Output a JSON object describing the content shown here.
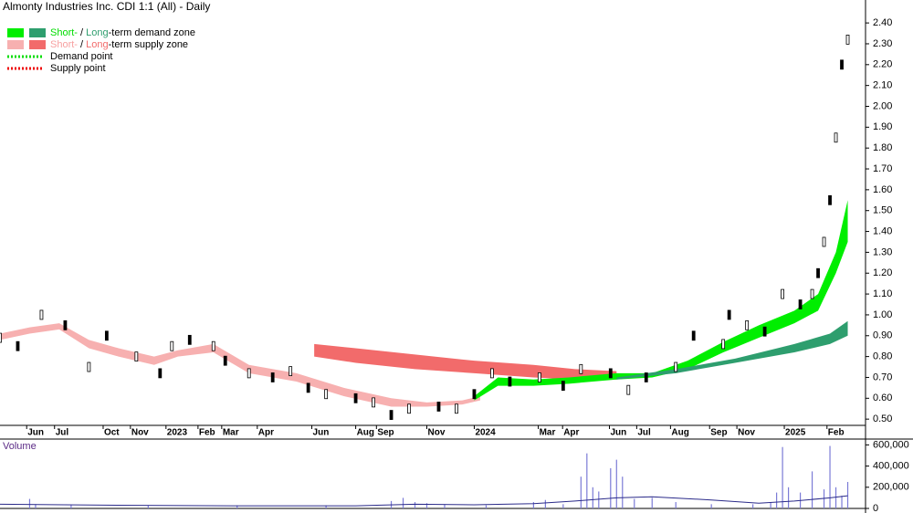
{
  "chart_data": [
    {
      "type": "price-zones",
      "title": "Almonty Industries Inc. CDI 1:1 (All) - Daily",
      "legend": [
        {
          "swatches": [
            "#00ee00",
            "#2e9e6e"
          ],
          "parts": [
            {
              "text": "Short-",
              "color": "#00dd00"
            },
            {
              "text": " / "
            },
            {
              "text": "Long",
              "color": "#2e9e6e"
            },
            {
              "text": "-term demand zone"
            }
          ]
        },
        {
          "swatches": [
            "#f7b0b0",
            "#f26b6b"
          ],
          "parts": [
            {
              "text": "Short-",
              "color": "#f7a0a0"
            },
            {
              "text": " / "
            },
            {
              "text": "Long",
              "color": "#f26b6b"
            },
            {
              "text": "-term supply zone"
            }
          ]
        },
        {
          "swatches": [
            "#00dd00"
          ],
          "dotted": true,
          "parts": [
            {
              "text": "Demand point"
            }
          ]
        },
        {
          "swatches": [
            "#ee0000"
          ],
          "dotted": true,
          "parts": [
            {
              "text": "Supply point"
            }
          ]
        }
      ],
      "xlim": [
        0,
        146
      ],
      "ylim": [
        0.47,
        2.51
      ],
      "yticks": [
        {
          "value": 0.5,
          "label": "0.50"
        },
        {
          "value": 0.6,
          "label": "0.60"
        },
        {
          "value": 0.7,
          "label": "0.70"
        },
        {
          "value": 0.8,
          "label": "0.80"
        },
        {
          "value": 0.9,
          "label": "0.90"
        },
        {
          "value": 1.0,
          "label": "1.00"
        },
        {
          "value": 1.1,
          "label": "1.10"
        },
        {
          "value": 1.2,
          "label": "1.20"
        },
        {
          "value": 1.3,
          "label": "1.30"
        },
        {
          "value": 1.4,
          "label": "1.40"
        },
        {
          "value": 1.5,
          "label": "1.50"
        },
        {
          "value": 1.6,
          "label": "1.60"
        },
        {
          "value": 1.7,
          "label": "1.70"
        },
        {
          "value": 1.8,
          "label": "1.80"
        },
        {
          "value": 1.9,
          "label": "1.90"
        },
        {
          "value": 2.0,
          "label": "2.00"
        },
        {
          "value": 2.1,
          "label": "2.10"
        },
        {
          "value": 2.2,
          "label": "2.20"
        },
        {
          "value": 2.3,
          "label": "2.30"
        },
        {
          "value": 2.4,
          "label": "2.40"
        }
      ],
      "xticks": [
        {
          "value": 4.5,
          "label": "Jun"
        },
        {
          "value": 9.2,
          "label": "Jul"
        },
        {
          "value": 17.4,
          "label": "Oct"
        },
        {
          "value": 22,
          "label": "Nov"
        },
        {
          "value": 28,
          "label": "2023"
        },
        {
          "value": 33.4,
          "label": "Feb"
        },
        {
          "value": 37.4,
          "label": "Mar"
        },
        {
          "value": 43.4,
          "label": "Apr"
        },
        {
          "value": 52.6,
          "label": "Jun"
        },
        {
          "value": 60,
          "label": "Aug"
        },
        {
          "value": 63.5,
          "label": "Sep"
        },
        {
          "value": 72,
          "label": "Nov"
        },
        {
          "value": 80,
          "label": "2024"
        },
        {
          "value": 90.8,
          "label": "Mar"
        },
        {
          "value": 94.9,
          "label": "Apr"
        },
        {
          "value": 102.8,
          "label": "Jun"
        },
        {
          "value": 107.4,
          "label": "Jul"
        },
        {
          "value": 113.1,
          "label": "Aug"
        },
        {
          "value": 119.7,
          "label": "Sep"
        },
        {
          "value": 124.3,
          "label": "Nov"
        },
        {
          "value": 132.3,
          "label": "2025"
        },
        {
          "value": 139.5,
          "label": "Feb"
        }
      ],
      "zones": [
        {
          "color": "#f7b0b0",
          "x": [
            0,
            5,
            10,
            15,
            20,
            26,
            30,
            36,
            42,
            50,
            58,
            66,
            72,
            78,
            81
          ],
          "lower": [
            0.88,
            0.91,
            0.93,
            0.84,
            0.8,
            0.76,
            0.8,
            0.82,
            0.72,
            0.68,
            0.61,
            0.56,
            0.56,
            0.57,
            0.59
          ],
          "upper": [
            0.91,
            0.94,
            0.96,
            0.88,
            0.84,
            0.8,
            0.83,
            0.86,
            0.76,
            0.72,
            0.65,
            0.6,
            0.58,
            0.59,
            0.61
          ]
        },
        {
          "color": "#f26b6b",
          "x": [
            53,
            60,
            70,
            80,
            90,
            97,
            104
          ],
          "lower": [
            0.8,
            0.77,
            0.74,
            0.72,
            0.7,
            0.69,
            0.69
          ],
          "upper": [
            0.86,
            0.84,
            0.81,
            0.78,
            0.76,
            0.74,
            0.73
          ]
        },
        {
          "color": "#00ee00",
          "x": [
            80,
            84,
            90,
            96,
            104,
            110,
            116,
            122,
            128,
            134,
            138,
            141,
            143
          ],
          "lower": [
            0.59,
            0.66,
            0.66,
            0.67,
            0.69,
            0.7,
            0.74,
            0.82,
            0.89,
            0.96,
            1.02,
            1.2,
            1.35
          ],
          "upper": [
            0.61,
            0.7,
            0.69,
            0.7,
            0.72,
            0.72,
            0.78,
            0.87,
            0.95,
            1.02,
            1.1,
            1.3,
            1.55
          ]
        },
        {
          "color": "#2e9e6e",
          "x": [
            104,
            114,
            124,
            134,
            140,
            143
          ],
          "lower": [
            0.69,
            0.72,
            0.77,
            0.82,
            0.86,
            0.9
          ],
          "upper": [
            0.7,
            0.74,
            0.79,
            0.86,
            0.91,
            0.97
          ]
        }
      ],
      "series": [
        {
          "name": "Price",
          "color": "#000000",
          "x": [
            0,
            3,
            7,
            11,
            15,
            18,
            23,
            27,
            29,
            32,
            36,
            38,
            42,
            46,
            49,
            52,
            55,
            60,
            63,
            66,
            69,
            74,
            77,
            80,
            83,
            86,
            91,
            95,
            98,
            103,
            106,
            109,
            114,
            117,
            122,
            123,
            126,
            129,
            132,
            135,
            137,
            138,
            139,
            140,
            141,
            142,
            143
          ],
          "values": [
            0.89,
            0.85,
            1.0,
            0.95,
            0.75,
            0.9,
            0.8,
            0.72,
            0.85,
            0.88,
            0.85,
            0.78,
            0.72,
            0.7,
            0.73,
            0.65,
            0.62,
            0.6,
            0.58,
            0.52,
            0.55,
            0.56,
            0.55,
            0.62,
            0.72,
            0.68,
            0.7,
            0.66,
            0.74,
            0.72,
            0.64,
            0.7,
            0.75,
            0.9,
            0.86,
            1.0,
            0.95,
            0.92,
            1.1,
            1.05,
            1.1,
            1.2,
            1.35,
            1.55,
            1.85,
            2.2,
            2.32
          ]
        }
      ]
    },
    {
      "type": "bar",
      "title": "Volume",
      "xlim": [
        0,
        146
      ],
      "ylim": [
        0,
        655000
      ],
      "yticks": [
        0,
        {
          "value": 200000,
          "label": "200,000"
        },
        {
          "value": 400000,
          "label": "400,000"
        },
        {
          "value": 600000,
          "label": "600,000"
        }
      ],
      "color": "#7b7bd6",
      "x": [
        5,
        6,
        12,
        25,
        40,
        55,
        66,
        68,
        70,
        72,
        75,
        82,
        90,
        92,
        95,
        98,
        99,
        100,
        101,
        103,
        104,
        105,
        107,
        110,
        114,
        120,
        127,
        130,
        131,
        132,
        133,
        135,
        137,
        139,
        140,
        141,
        142,
        143
      ],
      "values": [
        90000,
        40000,
        30000,
        25000,
        30000,
        30000,
        70000,
        100000,
        60000,
        50000,
        40000,
        30000,
        60000,
        80000,
        40000,
        300000,
        520000,
        200000,
        160000,
        380000,
        460000,
        300000,
        90000,
        100000,
        60000,
        40000,
        40000,
        60000,
        150000,
        580000,
        200000,
        150000,
        350000,
        180000,
        590000,
        200000,
        120000,
        250000
      ],
      "average": {
        "color": "#2b2b8a",
        "x": [
          0,
          20,
          40,
          60,
          70,
          80,
          90,
          97,
          104,
          110,
          120,
          128,
          134,
          140,
          143
        ],
        "values": [
          40000,
          30000,
          25000,
          25000,
          40000,
          35000,
          45000,
          70000,
          100000,
          110000,
          80000,
          50000,
          70000,
          100000,
          120000
        ]
      }
    }
  ]
}
